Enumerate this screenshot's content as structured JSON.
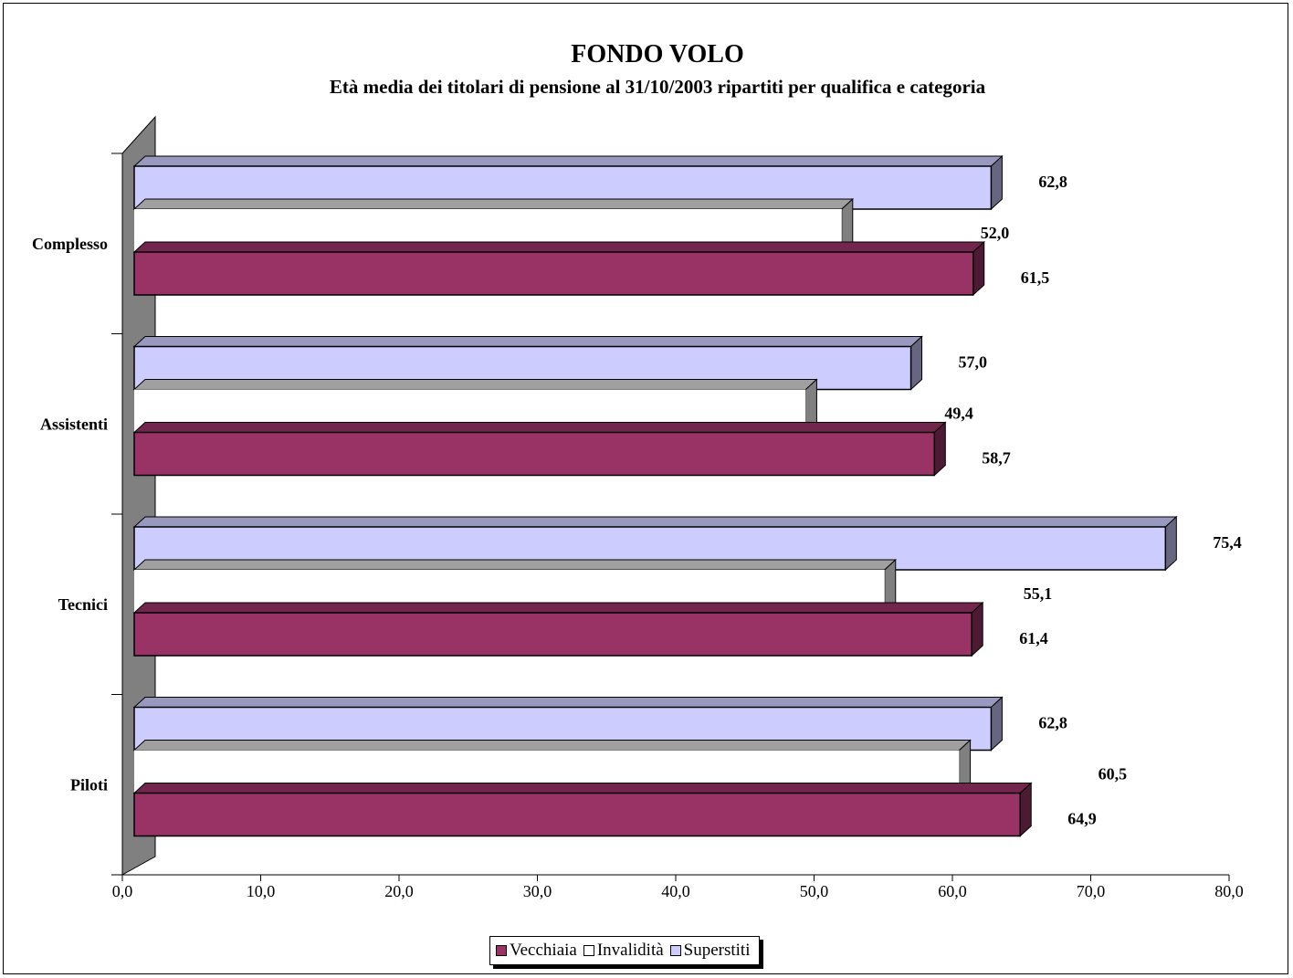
{
  "chart_data": {
    "type": "bar",
    "orientation": "horizontal",
    "title": "FONDO VOLO",
    "subtitle": "Età media dei titolari di pensione al 31/10/2003 ripartiti per qualifica e categoria",
    "categories": [
      "Complesso",
      "Assistenti",
      "Tecnici",
      "Piloti"
    ],
    "series": [
      {
        "name": "Vecchiaia",
        "color": "#993366",
        "values": [
          61.5,
          58.7,
          61.4,
          64.9
        ],
        "labels": [
          "61,5",
          "58,7",
          "61,4",
          "64,9"
        ]
      },
      {
        "name": "Invalidità",
        "color": "#ffffff",
        "values": [
          52.0,
          49.4,
          55.1,
          60.5
        ],
        "labels": [
          "52,0",
          "49,4",
          "55,1",
          "60,5"
        ]
      },
      {
        "name": "Superstiti",
        "color": "#ccccff",
        "values": [
          62.8,
          57.0,
          75.4,
          62.8
        ],
        "labels": [
          "62,8",
          "57,0",
          "75,4",
          "62,8"
        ]
      }
    ],
    "xlim": [
      0,
      80
    ],
    "xticks": [
      0,
      10,
      20,
      30,
      40,
      50,
      60,
      70,
      80
    ],
    "xtick_labels": [
      "0,0",
      "10,0",
      "20,0",
      "30,0",
      "40,0",
      "50,0",
      "60,0",
      "70,0",
      "80,0"
    ],
    "legend_position": "bottom",
    "grid": false,
    "style": "3d"
  }
}
